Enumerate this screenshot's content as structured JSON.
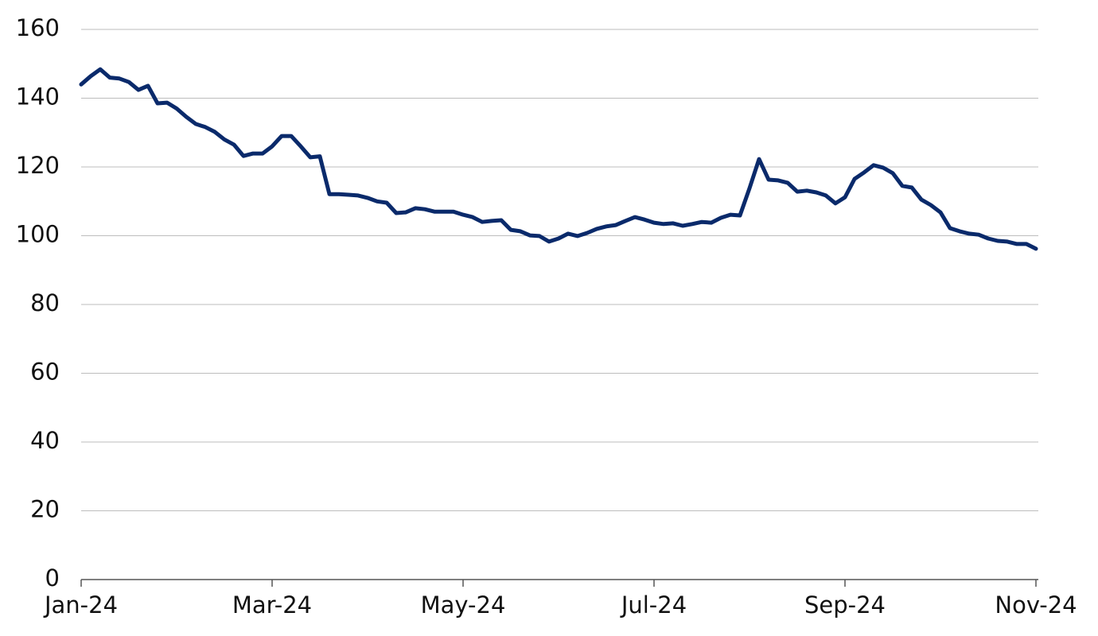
{
  "chart_data": {
    "type": "line",
    "categories": [
      "Jan-24",
      null,
      null,
      null,
      null,
      null,
      null,
      null,
      null,
      null,
      null,
      null,
      null,
      null,
      null,
      null,
      null,
      null,
      null,
      null,
      "Mar-24",
      null,
      null,
      null,
      null,
      null,
      null,
      null,
      null,
      null,
      null,
      null,
      null,
      null,
      null,
      null,
      null,
      null,
      null,
      null,
      "May-24",
      null,
      null,
      null,
      null,
      null,
      null,
      null,
      null,
      null,
      null,
      null,
      null,
      null,
      null,
      null,
      null,
      null,
      null,
      null,
      "Jul-24",
      null,
      null,
      null,
      null,
      null,
      null,
      null,
      null,
      null,
      null,
      null,
      null,
      null,
      null,
      null,
      null,
      null,
      null,
      null,
      "Sep-24",
      null,
      null,
      null,
      null,
      null,
      null,
      null,
      null,
      null,
      null,
      null,
      null,
      null,
      null,
      null,
      null,
      null,
      null,
      null,
      "Nov-24"
    ],
    "values": [
      144,
      146.4,
      148.4,
      146,
      145.7,
      144.7,
      142.4,
      143.6,
      138.5,
      138.7,
      137,
      134.6,
      132.5,
      131.6,
      130.2,
      128,
      126.5,
      123.2,
      123.9,
      123.9,
      126,
      129,
      129,
      126,
      122.8,
      123.1,
      112.1,
      112.1,
      111.9,
      111.7,
      111,
      110,
      109.6,
      106.6,
      106.8,
      108,
      107.7,
      107,
      107,
      107,
      106.1,
      105.4,
      104,
      104.3,
      104.5,
      101.7,
      101.3,
      100.1,
      99.9,
      98.3,
      99.2,
      100.6,
      99.9,
      100.8,
      102,
      102.7,
      103.1,
      104.3,
      105.4,
      104.7,
      103.8,
      103.4,
      103.6,
      102.9,
      103.4,
      104,
      103.8,
      105.2,
      106.1,
      105.9,
      113.8,
      122.3,
      116.3,
      116.1,
      115.4,
      112.8,
      113.1,
      112.6,
      111.7,
      109.4,
      111.2,
      116.5,
      118.4,
      120.5,
      119.8,
      118.2,
      114.5,
      114,
      110.5,
      108.9,
      106.8,
      102.2,
      101.3,
      100.6,
      100.3,
      99.2,
      98.5,
      98.3,
      97.6,
      97.6,
      96.2
    ],
    "color": "#0a2a6b",
    "ylim": [
      0,
      160
    ],
    "yticks": [
      0,
      20,
      40,
      60,
      80,
      100,
      120,
      140,
      160
    ],
    "grid": true
  }
}
